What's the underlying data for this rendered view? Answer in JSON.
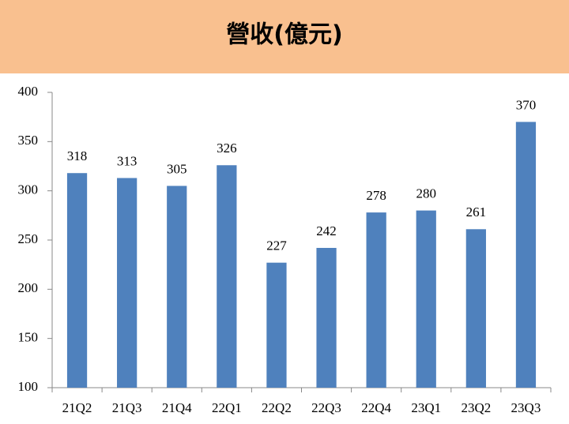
{
  "chart_data": {
    "type": "bar",
    "title": "營收(億元)",
    "categories": [
      "21Q2",
      "21Q3",
      "21Q4",
      "22Q1",
      "22Q2",
      "22Q3",
      "22Q4",
      "23Q1",
      "23Q2",
      "23Q3"
    ],
    "values": [
      318,
      313,
      305,
      326,
      227,
      242,
      278,
      280,
      261,
      370
    ],
    "color": "#4f81bd",
    "ylim": [
      100,
      400
    ],
    "yticks": [
      100,
      150,
      200,
      250,
      300,
      350,
      400
    ],
    "grid": false
  }
}
